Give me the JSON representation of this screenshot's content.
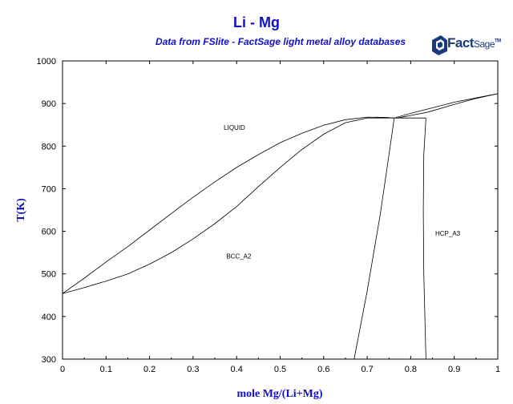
{
  "chart_data": {
    "type": "line",
    "title": "Li - Mg",
    "subtitle": "Data from FSlite - FactSage light metal alloy databases",
    "xlabel": "mole Mg/(Li+Mg)",
    "ylabel": "T(K)",
    "xlim": [
      0,
      1
    ],
    "ylim": [
      300,
      1000
    ],
    "xticks": [
      "0",
      "0.1",
      "0.2",
      "0.3",
      "0.4",
      "0.5",
      "0.6",
      "0.7",
      "0.8",
      "0.9",
      "1"
    ],
    "yticks": [
      "300",
      "400",
      "500",
      "600",
      "700",
      "800",
      "900",
      "1000"
    ],
    "grid": false,
    "phase_labels": [
      {
        "text": "LIQUID",
        "x": 0.395,
        "y": 838
      },
      {
        "text": "BCC_A2",
        "x": 0.405,
        "y": 536
      },
      {
        "text": "HCP_A3",
        "x": 0.885,
        "y": 590
      }
    ],
    "series": [
      {
        "values": [
          [
            0,
            454
          ],
          [
            0.05,
            490
          ],
          [
            0.1,
            528
          ],
          [
            0.15,
            564
          ],
          [
            0.2,
            603
          ],
          [
            0.25,
            642
          ],
          [
            0.3,
            680
          ],
          [
            0.35,
            716
          ],
          [
            0.4,
            750
          ],
          [
            0.45,
            780
          ],
          [
            0.5,
            808
          ],
          [
            0.55,
            830
          ],
          [
            0.6,
            849
          ],
          [
            0.65,
            862
          ],
          [
            0.7,
            868
          ],
          [
            0.75,
            867
          ]
        ]
      },
      {
        "values": [
          [
            0,
            454
          ],
          [
            0.05,
            468
          ],
          [
            0.1,
            483
          ],
          [
            0.15,
            500
          ],
          [
            0.2,
            523
          ],
          [
            0.25,
            550
          ],
          [
            0.3,
            582
          ],
          [
            0.35,
            618
          ],
          [
            0.4,
            658
          ],
          [
            0.45,
            705
          ],
          [
            0.5,
            750
          ],
          [
            0.55,
            792
          ],
          [
            0.6,
            828
          ],
          [
            0.65,
            855
          ],
          [
            0.7,
            866
          ],
          [
            0.76,
            866
          ]
        ]
      },
      {
        "values": [
          [
            0.72,
            868
          ],
          [
            0.762,
            866
          ],
          [
            0.8,
            877
          ],
          [
            0.85,
            890
          ],
          [
            0.9,
            903
          ],
          [
            0.95,
            913
          ],
          [
            1.0,
            923
          ]
        ]
      },
      {
        "values": [
          [
            0.77,
            866
          ],
          [
            0.8,
            872
          ],
          [
            0.84,
            880
          ],
          [
            0.9,
            898
          ],
          [
            0.95,
            912
          ],
          [
            1.0,
            923
          ]
        ]
      },
      {
        "values": [
          [
            0.762,
            866
          ],
          [
            0.835,
            866
          ]
        ]
      },
      {
        "values": [
          [
            0.67,
            300
          ],
          [
            0.7,
            460
          ],
          [
            0.73,
            640
          ],
          [
            0.75,
            780
          ],
          [
            0.762,
            866
          ]
        ]
      },
      {
        "values": [
          [
            0.835,
            300
          ],
          [
            0.83,
            500
          ],
          [
            0.829,
            650
          ],
          [
            0.83,
            780
          ],
          [
            0.835,
            866
          ]
        ]
      }
    ]
  },
  "logo": {
    "brand": "FactSage",
    "part1": "Fact",
    "part2": "Sage",
    "tm": "TM"
  }
}
